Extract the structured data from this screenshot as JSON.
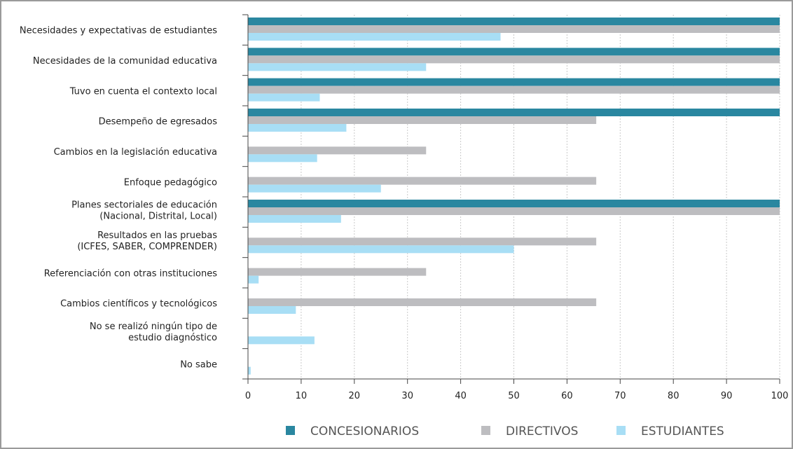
{
  "chart_data": {
    "type": "bar",
    "orientation": "horizontal",
    "categories": [
      [
        "Necesidades y expectativas de estudiantes"
      ],
      [
        "Necesidades de la comunidad educativa"
      ],
      [
        "Tuvo en cuenta el contexto local"
      ],
      [
        "Desempeño de egresados"
      ],
      [
        "Cambios en la legislación educativa"
      ],
      [
        "Enfoque pedagógico"
      ],
      [
        "Planes sectoriales de educación",
        "(Nacional, Distrital, Local)"
      ],
      [
        "Resultados en las pruebas",
        "(ICFES, SABER, COMPRENDER)"
      ],
      [
        "Referenciación con otras instituciones"
      ],
      [
        "Cambios científicos y tecnológicos"
      ],
      [
        "No se realizó ningún tipo de",
        "estudio diagnóstico"
      ],
      [
        "No sabe"
      ]
    ],
    "series": [
      {
        "name": "CONCESIONARIOS",
        "color": "#2a87a0",
        "values": [
          100,
          100,
          100,
          100,
          0,
          0,
          100,
          0,
          0,
          0,
          0,
          0
        ]
      },
      {
        "name": "DIRECTIVOS",
        "color": "#bdbdc0",
        "values": [
          100,
          100,
          100,
          65.5,
          33.5,
          65.5,
          100,
          65.5,
          33.5,
          65.5,
          0,
          0
        ]
      },
      {
        "name": "ESTUDIANTES",
        "color": "#a8def5",
        "values": [
          47.5,
          33.5,
          13.5,
          18.5,
          13,
          25,
          17.5,
          50,
          2,
          9,
          12.5,
          0.5
        ]
      }
    ],
    "xlim": [
      0,
      100
    ],
    "xticks": [
      0,
      10,
      20,
      30,
      40,
      50,
      60,
      70,
      80,
      90,
      100
    ],
    "grid": true,
    "legend_position": "bottom"
  }
}
